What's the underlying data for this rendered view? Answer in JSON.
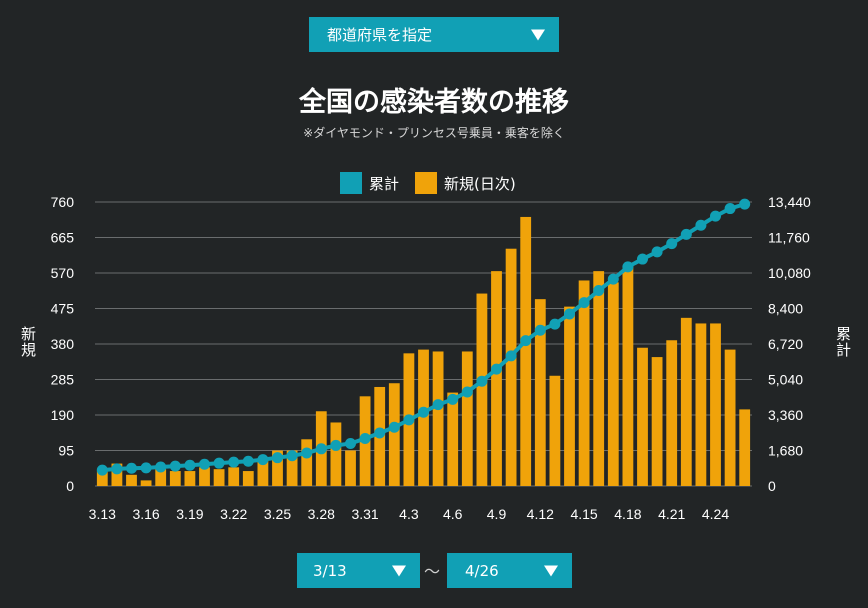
{
  "filters": {
    "prefecture_label": "都道府県を指定",
    "date_from": "3/13",
    "date_to": "4/26",
    "range_separator": "〜"
  },
  "chart_data": {
    "type": "bar",
    "title": "全国の感染者数の推移",
    "subtitle": "※ダイヤモンド・プリンセス号乗員・乗客を除く",
    "ylabel_left": "新規",
    "ylabel_right": "累計",
    "legend": [
      "累計",
      "新規(日次)"
    ],
    "legend_position": "top-center",
    "grid": true,
    "colors": {
      "cumulative": "#11a0b5",
      "daily": "#f0a30a",
      "background": "#222526",
      "grid": "#6a6d6e"
    },
    "ylim_left": [
      0,
      760
    ],
    "ylim_right": [
      0,
      13440
    ],
    "y_ticks_left": [
      "0",
      "95",
      "190",
      "285",
      "380",
      "475",
      "570",
      "665",
      "760"
    ],
    "y_ticks_right": [
      "0",
      "1,680",
      "3,360",
      "5,040",
      "6,720",
      "8,400",
      "10,080",
      "11,760",
      "13,440"
    ],
    "x_tick_labels": [
      "3.13",
      "3.16",
      "3.19",
      "3.22",
      "3.25",
      "3.28",
      "3.31",
      "4.3",
      "4.6",
      "4.9",
      "4.12",
      "4.15",
      "4.18",
      "4.21",
      "4.24"
    ],
    "x_tick_every": 3,
    "categories": [
      "3.13",
      "3.14",
      "3.15",
      "3.16",
      "3.17",
      "3.18",
      "3.19",
      "3.20",
      "3.21",
      "3.22",
      "3.23",
      "3.24",
      "3.25",
      "3.26",
      "3.27",
      "3.28",
      "3.29",
      "3.30",
      "3.31",
      "4.1",
      "4.2",
      "4.3",
      "4.4",
      "4.5",
      "4.6",
      "4.7",
      "4.8",
      "4.9",
      "4.10",
      "4.11",
      "4.12",
      "4.13",
      "4.14",
      "4.15",
      "4.16",
      "4.17",
      "4.18",
      "4.19",
      "4.20",
      "4.21",
      "4.22",
      "4.23",
      "4.24",
      "4.25",
      "4.26"
    ],
    "series": [
      {
        "name": "新規(日次)",
        "type": "bar",
        "axis": "left",
        "values": [
          40,
          60,
          30,
          15,
          45,
          40,
          40,
          50,
          45,
          50,
          40,
          75,
          95,
          95,
          125,
          200,
          170,
          95,
          240,
          265,
          275,
          355,
          365,
          360,
          250,
          360,
          515,
          575,
          635,
          720,
          500,
          295,
          480,
          550,
          575,
          545,
          590,
          370,
          345,
          390,
          450,
          435,
          435,
          365,
          205
        ]
      },
      {
        "name": "累計",
        "type": "line",
        "axis": "right",
        "values": [
          750,
          810,
          840,
          860,
          900,
          940,
          980,
          1030,
          1080,
          1130,
          1170,
          1250,
          1340,
          1430,
          1560,
          1760,
          1920,
          2010,
          2250,
          2510,
          2780,
          3130,
          3490,
          3850,
          4100,
          4450,
          4960,
          5530,
          6160,
          6880,
          7370,
          7660,
          8140,
          8680,
          9250,
          9790,
          10370,
          10740,
          11080,
          11470,
          11910,
          12340,
          12770,
          13130,
          13340
        ]
      }
    ]
  }
}
